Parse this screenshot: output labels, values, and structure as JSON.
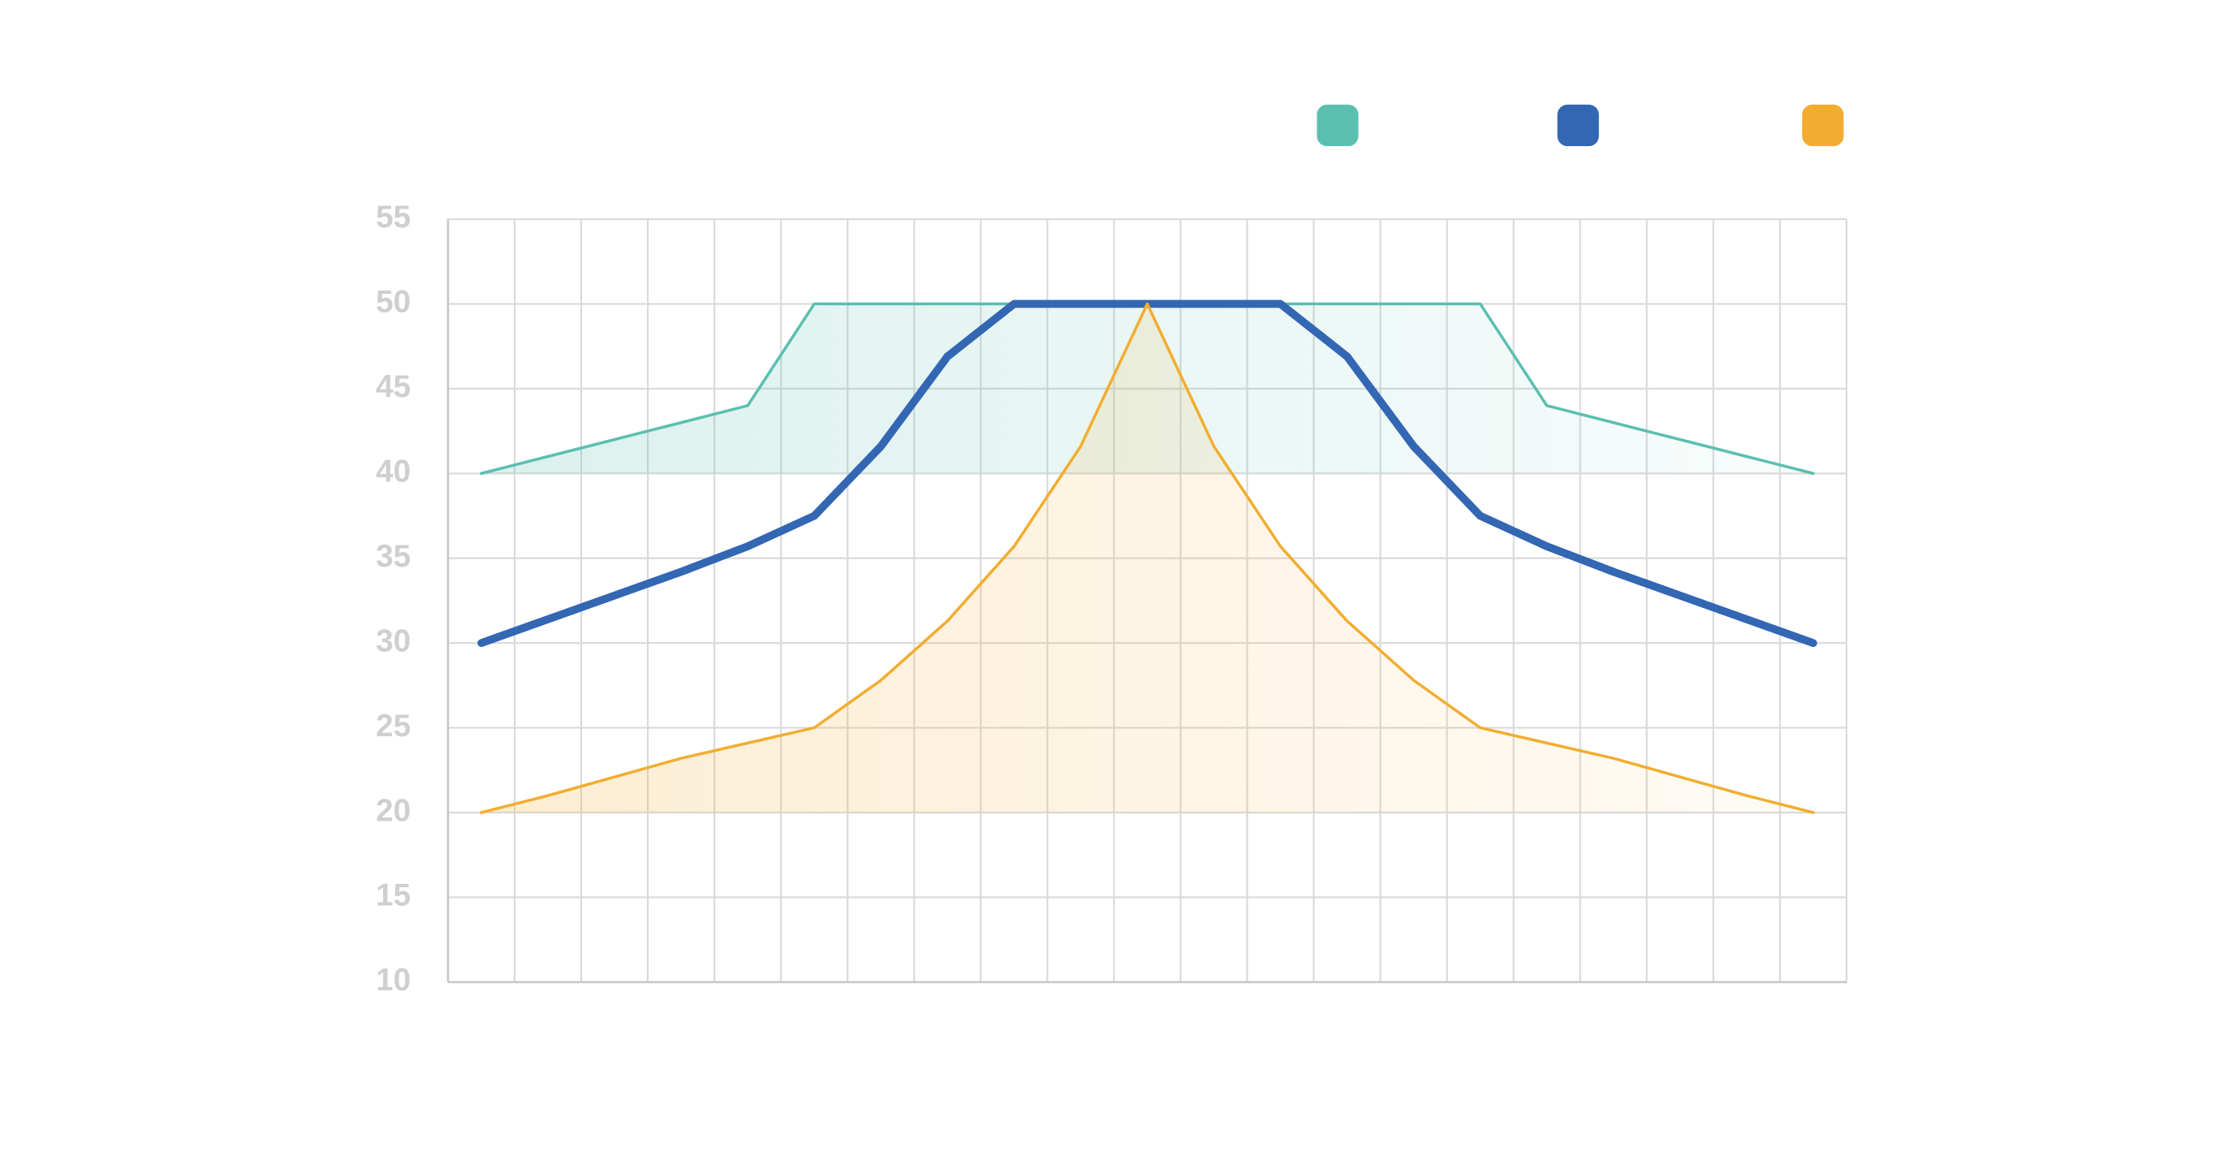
{
  "chart_data": {
    "type": "line",
    "categories": [
      null,
      null,
      null,
      null,
      null,
      null,
      null,
      null,
      null,
      null,
      null,
      null,
      null,
      null,
      null,
      null,
      null,
      null,
      null,
      null,
      null
    ],
    "series": [
      {
        "color": "#5bbfb0",
        "area": true,
        "values": [
          40,
          41,
          42,
          43,
          44,
          50,
          50,
          50,
          50,
          50,
          50,
          50,
          50,
          50,
          50,
          50,
          44,
          43,
          42,
          41,
          40
        ]
      },
      {
        "color": "#3366b3",
        "area": false,
        "values": [
          30,
          31.4,
          32.8,
          34.2,
          35.7,
          37.5,
          41.6,
          46.9,
          50,
          50,
          50,
          50,
          50,
          46.9,
          41.6,
          37.5,
          35.7,
          34.2,
          32.8,
          31.4,
          30
        ]
      },
      {
        "color": "#f2ad30",
        "area": true,
        "values": [
          20,
          21,
          22.1,
          23.2,
          24.1,
          25,
          27.8,
          31.3,
          35.7,
          41.6,
          50,
          41.6,
          35.7,
          31.3,
          27.8,
          25,
          24.1,
          23.2,
          22.1,
          21,
          20
        ]
      }
    ],
    "ylim": [
      10,
      55
    ],
    "yticks": [
      10,
      15,
      20,
      25,
      30,
      35,
      40,
      45,
      50,
      55
    ],
    "grid": true
  }
}
